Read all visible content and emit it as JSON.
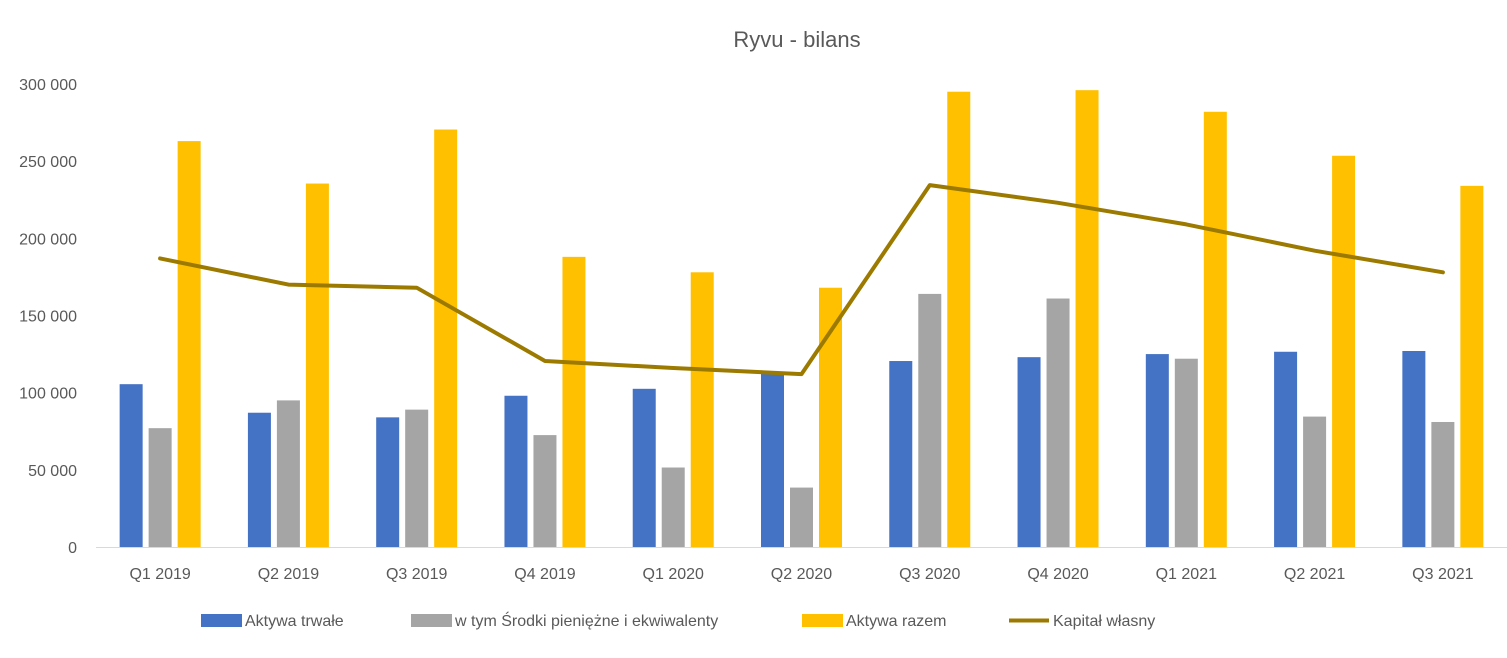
{
  "chart_data": {
    "type": "bar",
    "title": "Ryvu - bilans",
    "xlabel": "",
    "ylabel": "",
    "categories": [
      "Q1 2019",
      "Q2 2019",
      "Q3 2019",
      "Q4 2019",
      "Q1 2020",
      "Q2 2020",
      "Q3 2020",
      "Q4 2020",
      "Q1 2021",
      "Q2 2021",
      "Q3 2021"
    ],
    "ylim": [
      0,
      300000
    ],
    "yticks": [
      "0",
      "50 000",
      "100 000",
      "150 000",
      "200 000",
      "250 000",
      "300 000"
    ],
    "grid": false,
    "legend_position": "bottom",
    "series": [
      {
        "name": "Aktywa trwałe",
        "type": "bar",
        "color": "#4472C4",
        "values": [
          105500,
          87000,
          84000,
          98000,
          102500,
          113000,
          120500,
          123000,
          125000,
          126500,
          127000
        ]
      },
      {
        "name": "w tym Środki pieniężne i ekwiwalenty",
        "type": "bar",
        "color": "#A5A5A5",
        "values": [
          77000,
          95000,
          89000,
          72500,
          51500,
          38500,
          164000,
          161000,
          122000,
          84500,
          81000
        ]
      },
      {
        "name": "Aktywa razem",
        "type": "bar",
        "color": "#FFC000",
        "values": [
          263000,
          235500,
          270500,
          188000,
          178000,
          168000,
          295000,
          296000,
          282000,
          253500,
          234000
        ]
      },
      {
        "name": "Kapitał własny",
        "type": "line",
        "color": "#9C7A00",
        "values": [
          187000,
          170000,
          168000,
          120500,
          116000,
          112000,
          234500,
          223000,
          209000,
          192000,
          178000
        ]
      }
    ]
  }
}
